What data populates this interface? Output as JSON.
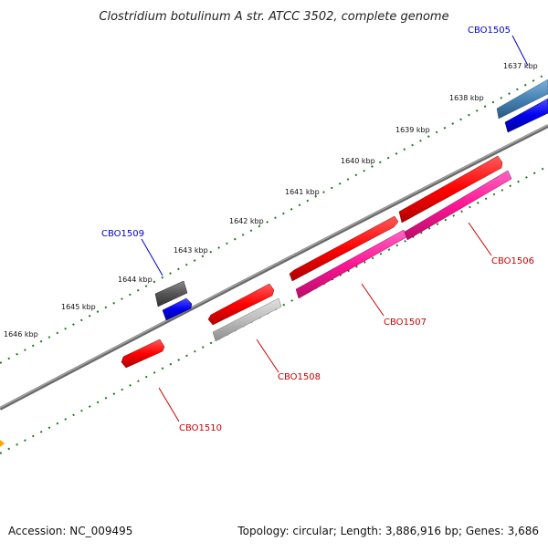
{
  "title": "Clostridium botulinum A str. ATCC 3502, complete genome",
  "footer": {
    "accession": "Accession: NC_009495",
    "topology": "Topology: circular; Length: 3,886,916 bp; Genes: 3,686"
  },
  "ticks": [
    "1637 kbp",
    "1638 kbp",
    "1639 kbp",
    "1640 kbp",
    "1641 kbp",
    "1642 kbp",
    "1643 kbp",
    "1644 kbp",
    "1645 kbp",
    "1646 kbp"
  ],
  "genes": [
    {
      "id": "CBO1505",
      "color": "#0000cc"
    },
    {
      "id": "CBO1506",
      "color": "#cc0000"
    },
    {
      "id": "CBO1507",
      "color": "#cc0000"
    },
    {
      "id": "CBO1508",
      "color": "#cc0000"
    },
    {
      "id": "CBO1509",
      "color": "#0000cc"
    },
    {
      "id": "CBO1510",
      "color": "#cc0000"
    }
  ],
  "colors": {
    "backbone": "#7a7a7a",
    "ticks": "#1f7a1f",
    "forward_gene": "#ff0000",
    "reverse_gene": "#0000ee",
    "rna_gene": "#ff1493",
    "pseudo_gene": "#bdbdbd",
    "dark_gene": "#555555",
    "steel_gene": "#4682b4",
    "edge_feature": "#ffa500"
  }
}
